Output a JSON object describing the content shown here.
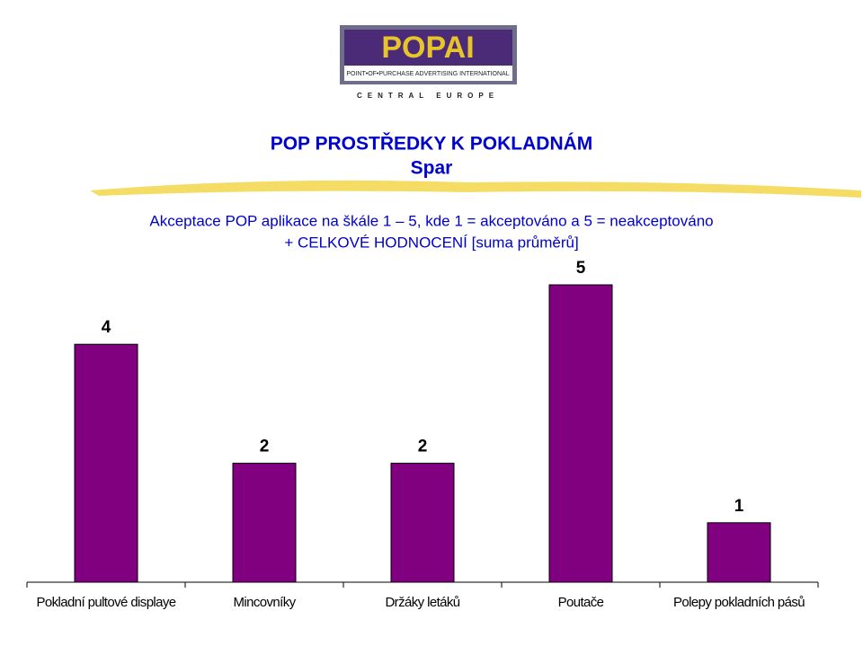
{
  "chart_data": {
    "type": "bar",
    "logo": {
      "name": "POPAI",
      "tagline": "POINT•OF•PURCHASE ADVERTISING INTERNATIONAL",
      "region": "CENTRAL EUROPE"
    },
    "title": "POP PROSTŘEDKY K POKLADNÁM",
    "subtitle": "Spar",
    "description": [
      "Akceptace POP aplikace na škále 1 – 5, kde 1 = akceptováno a 5 = neakceptováno",
      "+ CELKOVÉ HODNOCENÍ [suma průměrů]"
    ],
    "categories": [
      "Pokladní pultové displaye",
      "Mincovníky",
      "Držáky letáků",
      "Poutače",
      "Polepy pokladních pásů"
    ],
    "values": [
      4,
      2,
      2,
      5,
      1
    ],
    "color": "#800080"
  }
}
